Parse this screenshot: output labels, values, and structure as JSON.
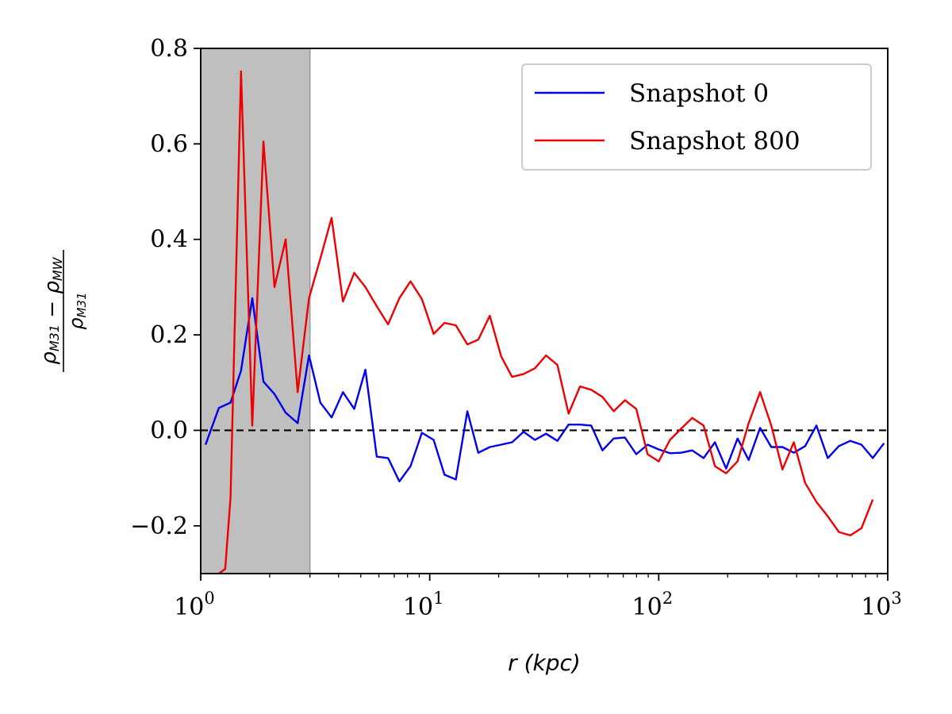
{
  "chart_data": {
    "type": "line",
    "x_scale": "log",
    "xlim": [
      1,
      1000
    ],
    "ylim": [
      -0.3,
      0.8
    ],
    "x_ticks": [
      1,
      10,
      100,
      1000
    ],
    "x_tick_labels": [
      {
        "base": "10",
        "exp": "0"
      },
      {
        "base": "10",
        "exp": "1"
      },
      {
        "base": "10",
        "exp": "2"
      },
      {
        "base": "10",
        "exp": "3"
      }
    ],
    "y_ticks": [
      -0.2,
      0.0,
      0.2,
      0.4,
      0.6,
      0.8
    ],
    "y_tick_labels": [
      "−0.2",
      "0.0",
      "0.2",
      "0.4",
      "0.6",
      "0.8"
    ],
    "xlabel": "r (kpc)",
    "ylabel": {
      "numerator": "ρ_M31 − ρ_MW",
      "denominator": "ρ_M31"
    },
    "grid": false,
    "legend_position": "top-right",
    "reference_line": {
      "y": 0.0,
      "style": "dashed",
      "color": "#000000"
    },
    "shaded_region": {
      "x": [
        1,
        3.0
      ],
      "color": "#bfbfbf"
    },
    "series": [
      {
        "name": "Snapshot 0",
        "color": "#0000ee",
        "points": [
          [
            1.05,
            -0.03
          ],
          [
            1.2,
            0.047
          ],
          [
            1.35,
            0.058
          ],
          [
            1.5,
            0.125
          ],
          [
            1.68,
            0.277
          ],
          [
            1.88,
            0.102
          ],
          [
            2.1,
            0.076
          ],
          [
            2.35,
            0.037
          ],
          [
            2.65,
            0.015
          ],
          [
            2.97,
            0.157
          ],
          [
            3.33,
            0.058
          ],
          [
            3.73,
            0.027
          ],
          [
            4.18,
            0.08
          ],
          [
            4.68,
            0.045
          ],
          [
            5.24,
            0.127
          ],
          [
            5.87,
            -0.055
          ],
          [
            6.58,
            -0.058
          ],
          [
            7.37,
            -0.107
          ],
          [
            8.25,
            -0.075
          ],
          [
            9.24,
            -0.005
          ],
          [
            10.4,
            -0.02
          ],
          [
            11.6,
            -0.093
          ],
          [
            13.0,
            -0.103
          ],
          [
            14.6,
            0.04
          ],
          [
            16.3,
            -0.047
          ],
          [
            18.3,
            -0.035
          ],
          [
            20.5,
            -0.03
          ],
          [
            22.9,
            -0.025
          ],
          [
            25.7,
            -0.003
          ],
          [
            28.8,
            -0.02
          ],
          [
            32.2,
            -0.007
          ],
          [
            36.1,
            -0.022
          ],
          [
            40.4,
            0.012
          ],
          [
            45.3,
            0.012
          ],
          [
            50.7,
            0.01
          ],
          [
            56.8,
            -0.042
          ],
          [
            63.6,
            -0.017
          ],
          [
            71.2,
            -0.015
          ],
          [
            79.8,
            -0.05
          ],
          [
            89.4,
            -0.03
          ],
          [
            100,
            -0.04
          ],
          [
            112,
            -0.048
          ],
          [
            125,
            -0.047
          ],
          [
            140,
            -0.042
          ],
          [
            157,
            -0.058
          ],
          [
            176,
            -0.025
          ],
          [
            197,
            -0.08
          ],
          [
            221,
            -0.017
          ],
          [
            247,
            -0.062
          ],
          [
            277,
            0.005
          ],
          [
            310,
            -0.035
          ],
          [
            347,
            -0.035
          ],
          [
            389,
            -0.047
          ],
          [
            436,
            -0.033
          ],
          [
            488,
            0.01
          ],
          [
            547,
            -0.058
          ],
          [
            612,
            -0.033
          ],
          [
            686,
            -0.022
          ],
          [
            768,
            -0.03
          ],
          [
            860,
            -0.058
          ],
          [
            963,
            -0.027
          ]
        ]
      },
      {
        "name": "Snapshot 800",
        "color": "#ee0000",
        "points": [
          [
            1.2,
            -0.3
          ],
          [
            1.28,
            -0.29
          ],
          [
            1.35,
            -0.14
          ],
          [
            1.5,
            0.752
          ],
          [
            1.68,
            0.01
          ],
          [
            1.88,
            0.605
          ],
          [
            2.1,
            0.3
          ],
          [
            2.35,
            0.4
          ],
          [
            2.65,
            0.08
          ],
          [
            2.97,
            0.277
          ],
          [
            3.33,
            0.36
          ],
          [
            3.73,
            0.445
          ],
          [
            4.18,
            0.27
          ],
          [
            4.68,
            0.33
          ],
          [
            5.24,
            0.3
          ],
          [
            5.87,
            0.26
          ],
          [
            6.58,
            0.222
          ],
          [
            7.37,
            0.277
          ],
          [
            8.25,
            0.312
          ],
          [
            9.24,
            0.275
          ],
          [
            10.4,
            0.202
          ],
          [
            11.6,
            0.225
          ],
          [
            13.0,
            0.22
          ],
          [
            14.6,
            0.18
          ],
          [
            16.3,
            0.19
          ],
          [
            18.3,
            0.24
          ],
          [
            20.5,
            0.155
          ],
          [
            22.9,
            0.112
          ],
          [
            25.7,
            0.118
          ],
          [
            28.8,
            0.13
          ],
          [
            32.2,
            0.157
          ],
          [
            36.1,
            0.137
          ],
          [
            40.4,
            0.035
          ],
          [
            45.3,
            0.092
          ],
          [
            50.7,
            0.085
          ],
          [
            56.8,
            0.07
          ],
          [
            63.6,
            0.04
          ],
          [
            71.2,
            0.063
          ],
          [
            79.8,
            0.045
          ],
          [
            89.4,
            -0.05
          ],
          [
            100,
            -0.065
          ],
          [
            112,
            -0.02
          ],
          [
            125,
            0.003
          ],
          [
            140,
            0.026
          ],
          [
            157,
            0.01
          ],
          [
            176,
            -0.075
          ],
          [
            197,
            -0.09
          ],
          [
            221,
            -0.065
          ],
          [
            247,
            0.015
          ],
          [
            277,
            0.08
          ],
          [
            310,
            0.01
          ],
          [
            347,
            -0.082
          ],
          [
            389,
            -0.025
          ],
          [
            436,
            -0.11
          ],
          [
            488,
            -0.15
          ],
          [
            547,
            -0.18
          ],
          [
            612,
            -0.213
          ],
          [
            686,
            -0.22
          ],
          [
            768,
            -0.205
          ],
          [
            860,
            -0.145
          ]
        ]
      }
    ]
  }
}
